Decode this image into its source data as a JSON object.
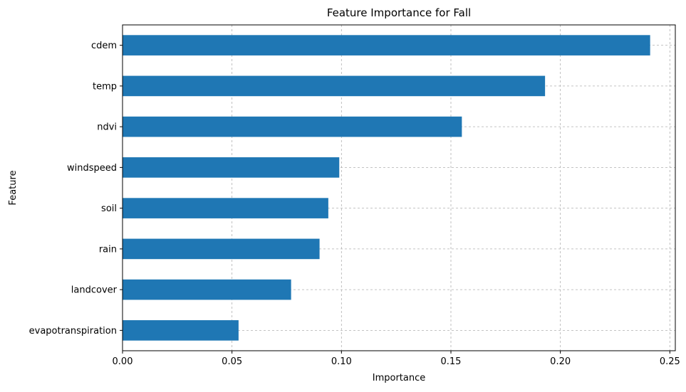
{
  "chart_data": {
    "type": "bar",
    "orientation": "horizontal",
    "title": "Feature Importance for Fall",
    "xlabel": "Importance",
    "ylabel": "Feature",
    "categories": [
      "cdem",
      "temp",
      "ndvi",
      "windspeed",
      "soil",
      "rain",
      "landcover",
      "evapotranspiration"
    ],
    "values": [
      0.241,
      0.193,
      0.155,
      0.099,
      0.094,
      0.09,
      0.077,
      0.053
    ],
    "xlim": [
      0,
      0.2525
    ],
    "xticks": [
      0.0,
      0.05,
      0.1,
      0.15,
      0.2,
      0.25
    ],
    "xtick_labels": [
      "0.00",
      "0.05",
      "0.10",
      "0.15",
      "0.20",
      "0.25"
    ],
    "bar_color": "#1f77b4",
    "grid": true,
    "grid_style": "dashed",
    "grid_color": "#b0b0b0"
  }
}
